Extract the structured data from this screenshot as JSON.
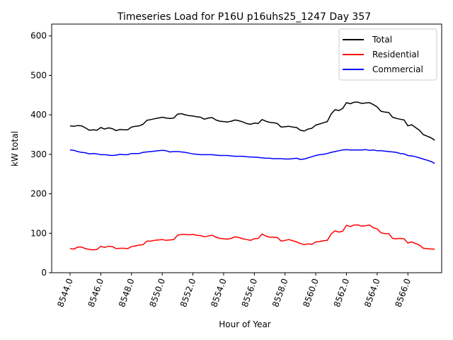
{
  "chart_data": {
    "type": "line",
    "title": "Timeseries Load for P16U p16uhs25_1247  Day 357",
    "xlabel": "Hour of Year",
    "ylabel": "kW total",
    "xlim": [
      8542.8,
      8568.2
    ],
    "ylim": [
      0,
      630
    ],
    "xticks": [
      8544,
      8546,
      8548,
      8550,
      8552,
      8554,
      8556,
      8558,
      8560,
      8562,
      8564,
      8566
    ],
    "xtick_labels": [
      "8544.0",
      "8546.0",
      "8548.0",
      "8550.0",
      "8552.0",
      "8554.0",
      "8556.0",
      "8558.0",
      "8560.0",
      "8562.0",
      "8564.0",
      "8566.0"
    ],
    "yticks": [
      0,
      100,
      200,
      300,
      400,
      500,
      600
    ],
    "ytick_labels": [
      "0",
      "100",
      "200",
      "300",
      "400",
      "500",
      "600"
    ],
    "grid": false,
    "legend_position": "top-right",
    "x": [
      8544.0,
      8544.25,
      8544.5,
      8544.75,
      8545.0,
      8545.25,
      8545.5,
      8545.75,
      8546.0,
      8546.25,
      8546.5,
      8546.75,
      8547.0,
      8547.25,
      8547.5,
      8547.75,
      8548.0,
      8548.25,
      8548.5,
      8548.75,
      8549.0,
      8549.25,
      8549.5,
      8549.75,
      8550.0,
      8550.25,
      8550.5,
      8550.75,
      8551.0,
      8551.25,
      8551.5,
      8551.75,
      8552.0,
      8552.25,
      8552.5,
      8552.75,
      8553.0,
      8553.25,
      8553.5,
      8553.75,
      8554.0,
      8554.25,
      8554.5,
      8554.75,
      8555.0,
      8555.25,
      8555.5,
      8555.75,
      8556.0,
      8556.25,
      8556.5,
      8556.75,
      8557.0,
      8557.25,
      8557.5,
      8557.75,
      8558.0,
      8558.25,
      8558.5,
      8558.75,
      8559.0,
      8559.25,
      8559.5,
      8559.75,
      8560.0,
      8560.25,
      8560.5,
      8560.75,
      8561.0,
      8561.25,
      8561.5,
      8561.75,
      8562.0,
      8562.25,
      8562.5,
      8562.75,
      8563.0,
      8563.25,
      8563.5,
      8563.75,
      8564.0,
      8564.25,
      8564.5,
      8564.75,
      8565.0,
      8565.25,
      8565.5,
      8565.75,
      8566.0,
      8566.25,
      8566.5,
      8566.75,
      8567.0,
      8567.25,
      8567.5,
      8567.75
    ],
    "series": [
      {
        "name": "Total",
        "color": "#000000",
        "values": [
          372,
          371,
          373,
          372,
          367,
          361,
          362,
          361,
          368,
          364,
          367,
          365,
          360,
          363,
          362,
          362,
          369,
          371,
          372,
          376,
          386,
          388,
          390,
          392,
          394,
          392,
          391,
          392,
          402,
          403,
          400,
          398,
          397,
          395,
          394,
          389,
          392,
          393,
          387,
          384,
          383,
          382,
          384,
          387,
          385,
          382,
          378,
          376,
          379,
          378,
          388,
          384,
          381,
          380,
          378,
          369,
          370,
          371,
          369,
          368,
          361,
          359,
          364,
          366,
          374,
          377,
          380,
          383,
          402,
          413,
          411,
          416,
          431,
          428,
          432,
          432,
          429,
          430,
          431,
          426,
          420,
          409,
          407,
          406,
          394,
          391,
          389,
          387,
          372,
          375,
          368,
          361,
          350,
          346,
          342,
          336
        ]
      },
      {
        "name": "Residential",
        "color": "#ff0000",
        "values": [
          61,
          60,
          65,
          65,
          61,
          59,
          58,
          59,
          67,
          64,
          67,
          66,
          61,
          62,
          62,
          61,
          66,
          68,
          70,
          71,
          80,
          80,
          82,
          83,
          84,
          82,
          83,
          84,
          95,
          97,
          97,
          96,
          97,
          95,
          94,
          91,
          93,
          95,
          90,
          87,
          86,
          85,
          87,
          91,
          89,
          86,
          84,
          82,
          86,
          87,
          98,
          93,
          90,
          90,
          89,
          80,
          82,
          84,
          81,
          78,
          74,
          71,
          73,
          72,
          78,
          79,
          81,
          82,
          98,
          106,
          103,
          105,
          120,
          117,
          121,
          121,
          118,
          119,
          121,
          114,
          111,
          101,
          99,
          99,
          87,
          86,
          87,
          86,
          75,
          78,
          74,
          70,
          62,
          61,
          60,
          60
        ]
      },
      {
        "name": "Commercial",
        "color": "#0000ff",
        "values": [
          311,
          310,
          307,
          305,
          304,
          301,
          302,
          301,
          299,
          299,
          298,
          297,
          298,
          300,
          299,
          299,
          302,
          302,
          302,
          305,
          306,
          307,
          308,
          309,
          310,
          309,
          306,
          307,
          307,
          306,
          305,
          303,
          301,
          300,
          299,
          299,
          299,
          299,
          298,
          297,
          297,
          297,
          296,
          295,
          295,
          295,
          294,
          293,
          293,
          292,
          291,
          290,
          290,
          289,
          289,
          289,
          288,
          288,
          289,
          290,
          287,
          288,
          291,
          294,
          297,
          299,
          300,
          302,
          305,
          307,
          309,
          311,
          312,
          311,
          311,
          311,
          311,
          312,
          310,
          311,
          309,
          309,
          308,
          307,
          306,
          305,
          302,
          301,
          297,
          296,
          294,
          291,
          288,
          285,
          282,
          277
        ]
      }
    ]
  }
}
